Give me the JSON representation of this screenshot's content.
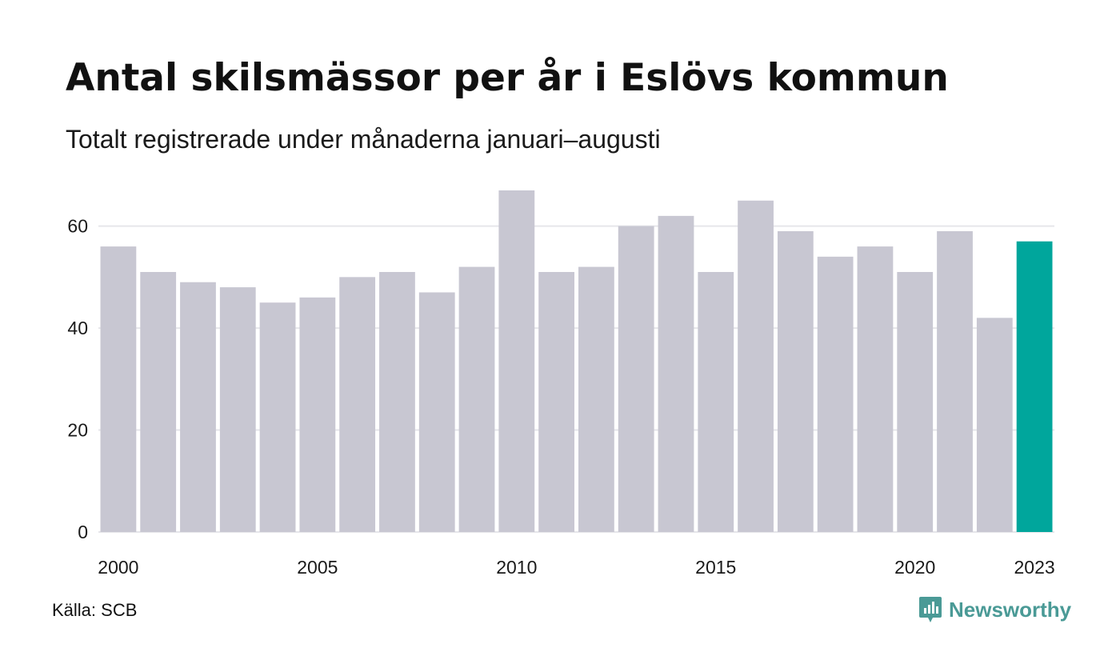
{
  "header": {
    "title": "Antal skilsmässor per år i Eslövs kommun",
    "subtitle": "Totalt registrerade under månaderna januari–augusti"
  },
  "footer": {
    "source": "Källa: SCB",
    "brand": "Newsworthy",
    "brand_color": "#4a9a96"
  },
  "colors": {
    "bar": "#c8c7d2",
    "highlight": "#00a69c",
    "grid": "#e6e6ea"
  },
  "chart_data": {
    "type": "bar",
    "x": [
      2000,
      2001,
      2002,
      2003,
      2004,
      2005,
      2006,
      2007,
      2008,
      2009,
      2010,
      2011,
      2012,
      2013,
      2014,
      2015,
      2016,
      2017,
      2018,
      2019,
      2020,
      2021,
      2022,
      2023
    ],
    "values": [
      56,
      51,
      49,
      48,
      45,
      46,
      50,
      51,
      47,
      52,
      67,
      51,
      52,
      60,
      62,
      51,
      65,
      59,
      54,
      56,
      51,
      59,
      42,
      57
    ],
    "highlight": [
      2023
    ],
    "x_tick_labels": [
      "2000",
      "2005",
      "2010",
      "2015",
      "2020",
      "2023"
    ],
    "y_ticks": [
      0,
      20,
      40,
      60
    ],
    "ylim": [
      0,
      67
    ],
    "grid": true,
    "legend": "none"
  }
}
